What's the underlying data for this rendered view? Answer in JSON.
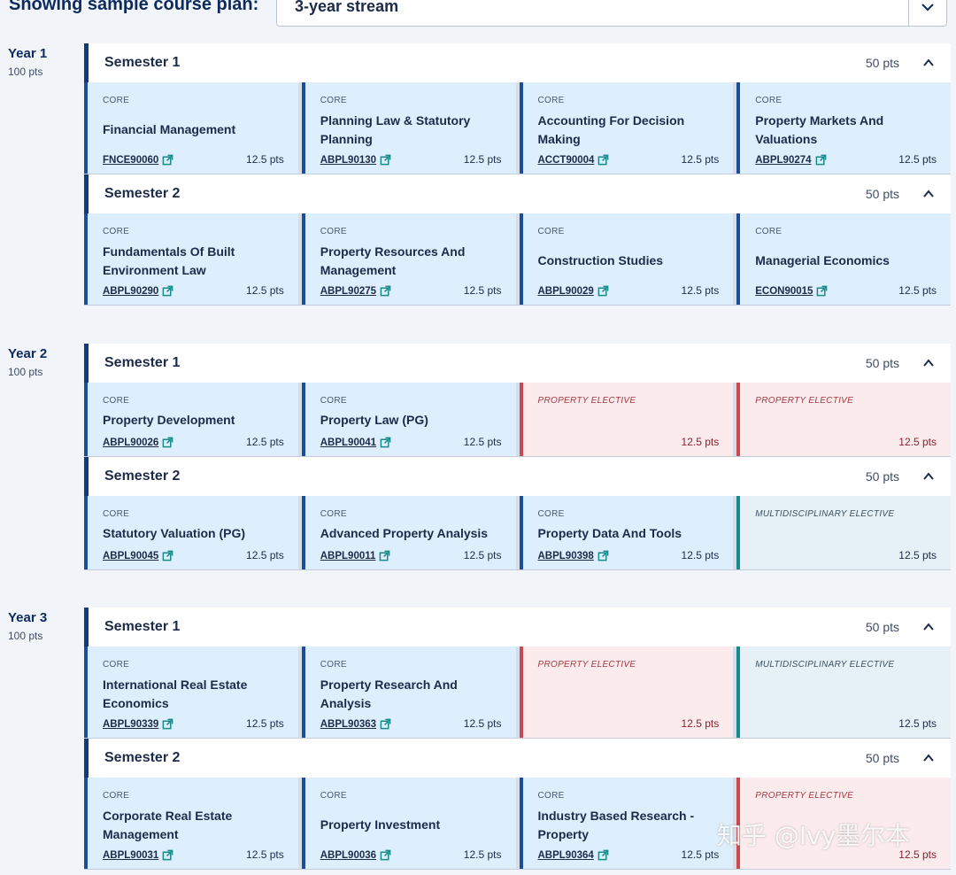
{
  "header": {
    "label": "Showing sample course plan:",
    "stream_value": "3-year stream"
  },
  "colors": {
    "navy": "#0e3a7e",
    "core_bg": "#ddeefc",
    "property_elective_border": "#c94a52",
    "multidisciplinary_elective_border": "#178a8a"
  },
  "years": [
    {
      "label": "Year 1",
      "points": "100 pts",
      "semesters": [
        {
          "title": "Semester 1",
          "points": "50 pts",
          "subjects": [
            {
              "type": "CORE",
              "title": "Financial Management",
              "code": "FNCE90060",
              "points": "12.5 pts"
            },
            {
              "type": "CORE",
              "title": "Planning Law & Statutory Planning",
              "code": "ABPL90130",
              "points": "12.5 pts"
            },
            {
              "type": "CORE",
              "title": "Accounting For Decision Making",
              "code": "ACCT90004",
              "points": "12.5 pts"
            },
            {
              "type": "CORE",
              "title": "Property Markets And Valuations",
              "code": "ABPL90274",
              "points": "12.5 pts"
            }
          ]
        },
        {
          "title": "Semester 2",
          "points": "50 pts",
          "subjects": [
            {
              "type": "CORE",
              "title": "Fundamentals Of Built Environment Law",
              "code": "ABPL90290",
              "points": "12.5 pts"
            },
            {
              "type": "CORE",
              "title": "Property Resources And Management",
              "code": "ABPL90275",
              "points": "12.5 pts"
            },
            {
              "type": "CORE",
              "title": "Construction Studies",
              "code": "ABPL90029",
              "points": "12.5 pts"
            },
            {
              "type": "CORE",
              "title": "Managerial Economics",
              "code": "ECON90015",
              "points": "12.5 pts"
            }
          ]
        }
      ]
    },
    {
      "label": "Year 2",
      "points": "100 pts",
      "semesters": [
        {
          "title": "Semester 1",
          "points": "50 pts",
          "subjects": [
            {
              "type": "CORE",
              "title": "Property Development",
              "code": "ABPL90026",
              "points": "12.5 pts"
            },
            {
              "type": "CORE",
              "title": "Property Law (PG)",
              "code": "ABPL90041",
              "points": "12.5 pts"
            },
            {
              "type": "PROPERTY ELECTIVE",
              "title": "",
              "code": "",
              "points": "12.5 pts"
            },
            {
              "type": "PROPERTY ELECTIVE",
              "title": "",
              "code": "",
              "points": "12.5 pts"
            }
          ]
        },
        {
          "title": "Semester 2",
          "points": "50 pts",
          "subjects": [
            {
              "type": "CORE",
              "title": "Statutory Valuation (PG)",
              "code": "ABPL90045",
              "points": "12.5 pts"
            },
            {
              "type": "CORE",
              "title": "Advanced Property Analysis",
              "code": "ABPL90011",
              "points": "12.5 pts"
            },
            {
              "type": "CORE",
              "title": "Property Data And Tools",
              "code": "ABPL90398",
              "points": "12.5 pts"
            },
            {
              "type": "MULTIDISCIPLINARY ELECTIVE",
              "title": "",
              "code": "",
              "points": "12.5 pts"
            }
          ]
        }
      ]
    },
    {
      "label": "Year 3",
      "points": "100 pts",
      "semesters": [
        {
          "title": "Semester 1",
          "points": "50 pts",
          "subjects": [
            {
              "type": "CORE",
              "title": "International Real Estate Economics",
              "code": "ABPL90339",
              "points": "12.5 pts"
            },
            {
              "type": "CORE",
              "title": "Property Research And Analysis",
              "code": "ABPL90363",
              "points": "12.5 pts"
            },
            {
              "type": "PROPERTY ELECTIVE",
              "title": "",
              "code": "",
              "points": "12.5 pts"
            },
            {
              "type": "MULTIDISCIPLINARY ELECTIVE",
              "title": "",
              "code": "",
              "points": "12.5 pts"
            }
          ]
        },
        {
          "title": "Semester 2",
          "points": "50 pts",
          "subjects": [
            {
              "type": "CORE",
              "title": "Corporate Real Estate Management",
              "code": "ABPL90031",
              "points": "12.5 pts"
            },
            {
              "type": "CORE",
              "title": "Property Investment",
              "code": "ABPL90036",
              "points": "12.5 pts"
            },
            {
              "type": "CORE",
              "title": "Industry Based Research - Property",
              "code": "ABPL90364",
              "points": "12.5 pts"
            },
            {
              "type": "PROPERTY ELECTIVE",
              "title": "",
              "code": "",
              "points": "12.5 pts"
            }
          ]
        }
      ]
    }
  ],
  "watermark": "知乎 @Ivy墨尔本"
}
